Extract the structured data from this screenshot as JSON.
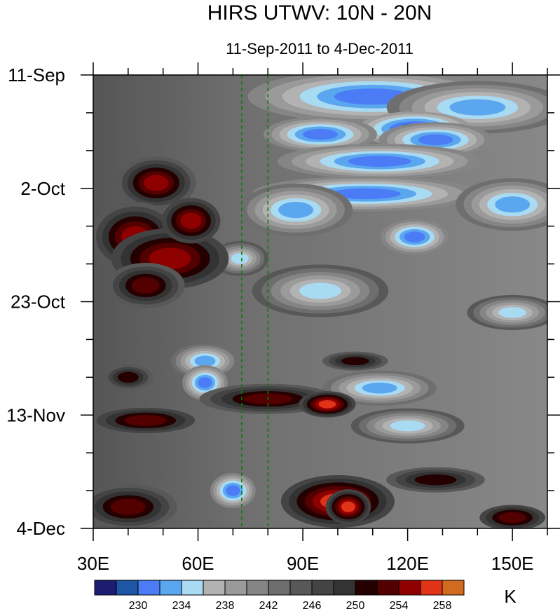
{
  "chart_data": {
    "type": "heatmap",
    "title": "HIRS UTWV: 10N - 20N",
    "subtitle": "11-Sep-2011 to 4-Dec-2011",
    "xlabel": "",
    "ylabel": "",
    "x_range": [
      30,
      160
    ],
    "y_range_days": [
      0,
      84
    ],
    "x_ticks": [
      {
        "value": 30,
        "label": "30E"
      },
      {
        "value": 60,
        "label": "60E"
      },
      {
        "value": 90,
        "label": "90E"
      },
      {
        "value": 120,
        "label": "120E"
      },
      {
        "value": 150,
        "label": "150E"
      }
    ],
    "y_ticks": [
      {
        "day": 0,
        "label": "11-Sep"
      },
      {
        "day": 21,
        "label": "2-Oct"
      },
      {
        "day": 42,
        "label": "23-Oct"
      },
      {
        "day": 63,
        "label": "13-Nov"
      },
      {
        "day": 84,
        "label": "4-Dec"
      }
    ],
    "reference_lines_lon": [
      72.5,
      80
    ],
    "colorbar": {
      "unit": "K",
      "levels": [
        228,
        230,
        232,
        234,
        236,
        238,
        240,
        242,
        244,
        246,
        248,
        250,
        252,
        254,
        256,
        258,
        260
      ],
      "labels": [
        "230",
        "234",
        "238",
        "242",
        "246",
        "250",
        "254",
        "258"
      ],
      "colors": [
        "#1c1c72",
        "#1d56a4",
        "#4b7cf5",
        "#5aa6ef",
        "#a8daf2",
        "#b2b2b2",
        "#9a9a9a",
        "#858585",
        "#6e6e6e",
        "#585858",
        "#444444",
        "#333333",
        "#240000",
        "#520000",
        "#8e0000",
        "#e03318",
        "#d06b20"
      ]
    },
    "features": [
      {
        "lon": 110,
        "day": 4,
        "value": 233,
        "spread_lon": 22,
        "spread_day": 3
      },
      {
        "lon": 140,
        "day": 6,
        "value": 235,
        "spread_lon": 16,
        "spread_day": 3
      },
      {
        "lon": 122,
        "day": 10,
        "value": 231,
        "spread_lon": 10,
        "spread_day": 2
      },
      {
        "lon": 95,
        "day": 11,
        "value": 232,
        "spread_lon": 10,
        "spread_day": 2
      },
      {
        "lon": 128,
        "day": 12,
        "value": 232,
        "spread_lon": 10,
        "spread_day": 2
      },
      {
        "lon": 112,
        "day": 16,
        "value": 232,
        "spread_lon": 18,
        "spread_day": 2
      },
      {
        "lon": 108,
        "day": 22,
        "value": 233,
        "spread_lon": 20,
        "spread_day": 2
      },
      {
        "lon": 88,
        "day": 25,
        "value": 235,
        "spread_lon": 10,
        "spread_day": 3
      },
      {
        "lon": 150,
        "day": 24,
        "value": 235,
        "spread_lon": 10,
        "spread_day": 3
      },
      {
        "lon": 122,
        "day": 30,
        "value": 232,
        "spread_lon": 6,
        "spread_day": 2
      },
      {
        "lon": 72,
        "day": 34,
        "value": 236,
        "spread_lon": 5,
        "spread_day": 2
      },
      {
        "lon": 95,
        "day": 40,
        "value": 237,
        "spread_lon": 12,
        "spread_day": 3
      },
      {
        "lon": 150,
        "day": 44,
        "value": 237,
        "spread_lon": 8,
        "spread_day": 2
      },
      {
        "lon": 62,
        "day": 53,
        "value": 234,
        "spread_lon": 6,
        "spread_day": 2
      },
      {
        "lon": 62,
        "day": 57,
        "value": 232,
        "spread_lon": 4,
        "spread_day": 2
      },
      {
        "lon": 112,
        "day": 58,
        "value": 234,
        "spread_lon": 10,
        "spread_day": 2
      },
      {
        "lon": 120,
        "day": 65,
        "value": 237,
        "spread_lon": 10,
        "spread_day": 2
      },
      {
        "lon": 70,
        "day": 77,
        "value": 232,
        "spread_lon": 4,
        "spread_day": 2
      },
      {
        "lon": 48,
        "day": 20,
        "value": 257,
        "spread_lon": 7,
        "spread_day": 3
      },
      {
        "lon": 42,
        "day": 30,
        "value": 257,
        "spread_lon": 8,
        "spread_day": 4
      },
      {
        "lon": 52,
        "day": 34,
        "value": 256,
        "spread_lon": 12,
        "spread_day": 4
      },
      {
        "lon": 45,
        "day": 39,
        "value": 255,
        "spread_lon": 8,
        "spread_day": 3
      },
      {
        "lon": 58,
        "day": 27,
        "value": 256,
        "spread_lon": 6,
        "spread_day": 3
      },
      {
        "lon": 80,
        "day": 60,
        "value": 255,
        "spread_lon": 14,
        "spread_day": 2
      },
      {
        "lon": 97,
        "day": 61,
        "value": 258,
        "spread_lon": 5,
        "spread_day": 1.5
      },
      {
        "lon": 45,
        "day": 64,
        "value": 254,
        "spread_lon": 12,
        "spread_day": 2
      },
      {
        "lon": 100,
        "day": 79,
        "value": 258,
        "spread_lon": 10,
        "spread_day": 3
      },
      {
        "lon": 103,
        "day": 80,
        "value": 259,
        "spread_lon": 4,
        "spread_day": 2
      },
      {
        "lon": 40,
        "day": 80,
        "value": 255,
        "spread_lon": 10,
        "spread_day": 3
      },
      {
        "lon": 128,
        "day": 75,
        "value": 253,
        "spread_lon": 12,
        "spread_day": 2
      },
      {
        "lon": 150,
        "day": 82,
        "value": 254,
        "spread_lon": 8,
        "spread_day": 2
      },
      {
        "lon": 40,
        "day": 56,
        "value": 253,
        "spread_lon": 6,
        "spread_day": 2
      },
      {
        "lon": 105,
        "day": 53,
        "value": 253,
        "spread_lon": 8,
        "spread_day": 1.5
      }
    ]
  }
}
